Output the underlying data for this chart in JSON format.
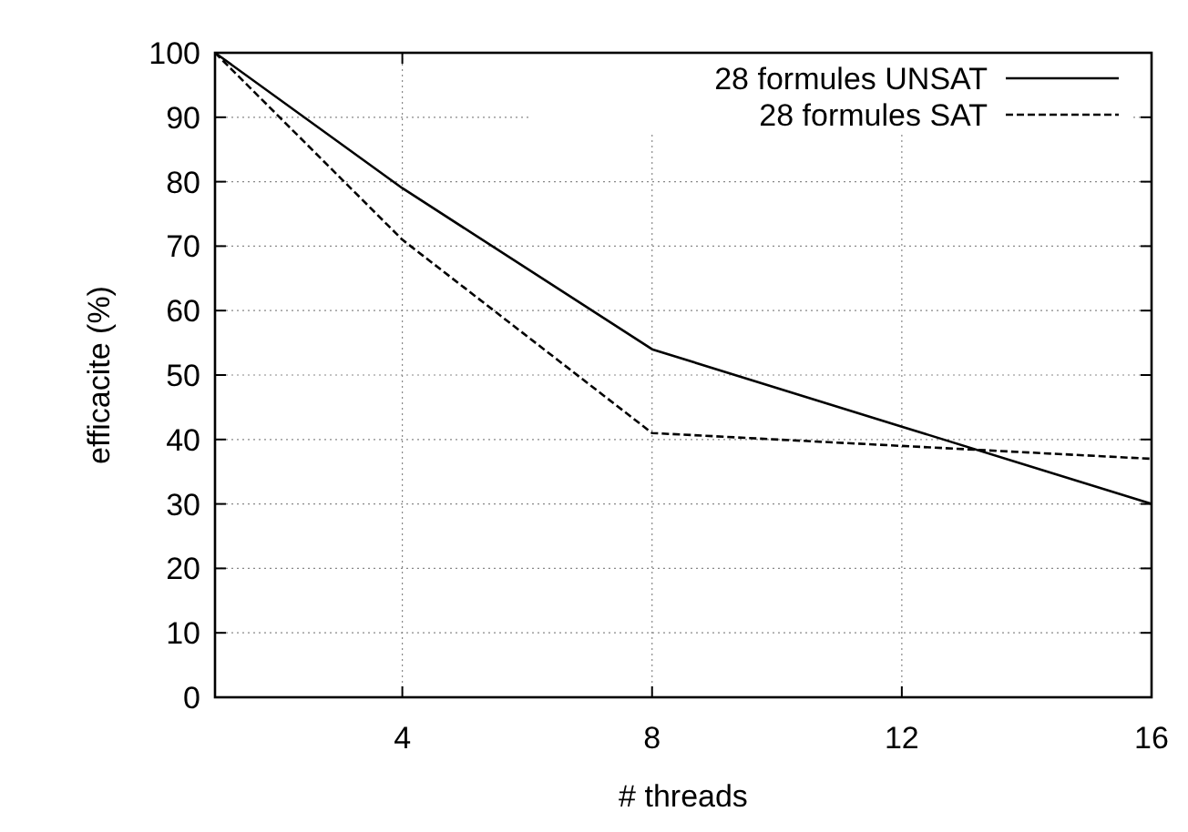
{
  "chart_data": {
    "type": "line",
    "xlabel": "# threads",
    "ylabel": "efficacite (%)",
    "x": [
      1,
      4,
      8,
      12,
      16
    ],
    "series": [
      {
        "name": "28 formules UNSAT",
        "color": "#000000",
        "values": [
          100,
          79,
          54,
          42,
          30
        ],
        "line_style": "solid"
      },
      {
        "name": "28 formules SAT",
        "color": "#000000",
        "values": [
          100,
          71,
          41,
          39,
          37
        ],
        "line_style": "dashed"
      }
    ],
    "xlim": [
      1,
      16
    ],
    "xticks": [
      4,
      8,
      12,
      16
    ],
    "ylim": [
      0,
      100
    ],
    "yticks": [
      0,
      10,
      20,
      30,
      40,
      50,
      60,
      70,
      80,
      90,
      100
    ],
    "grid": true,
    "legend": "top right"
  }
}
